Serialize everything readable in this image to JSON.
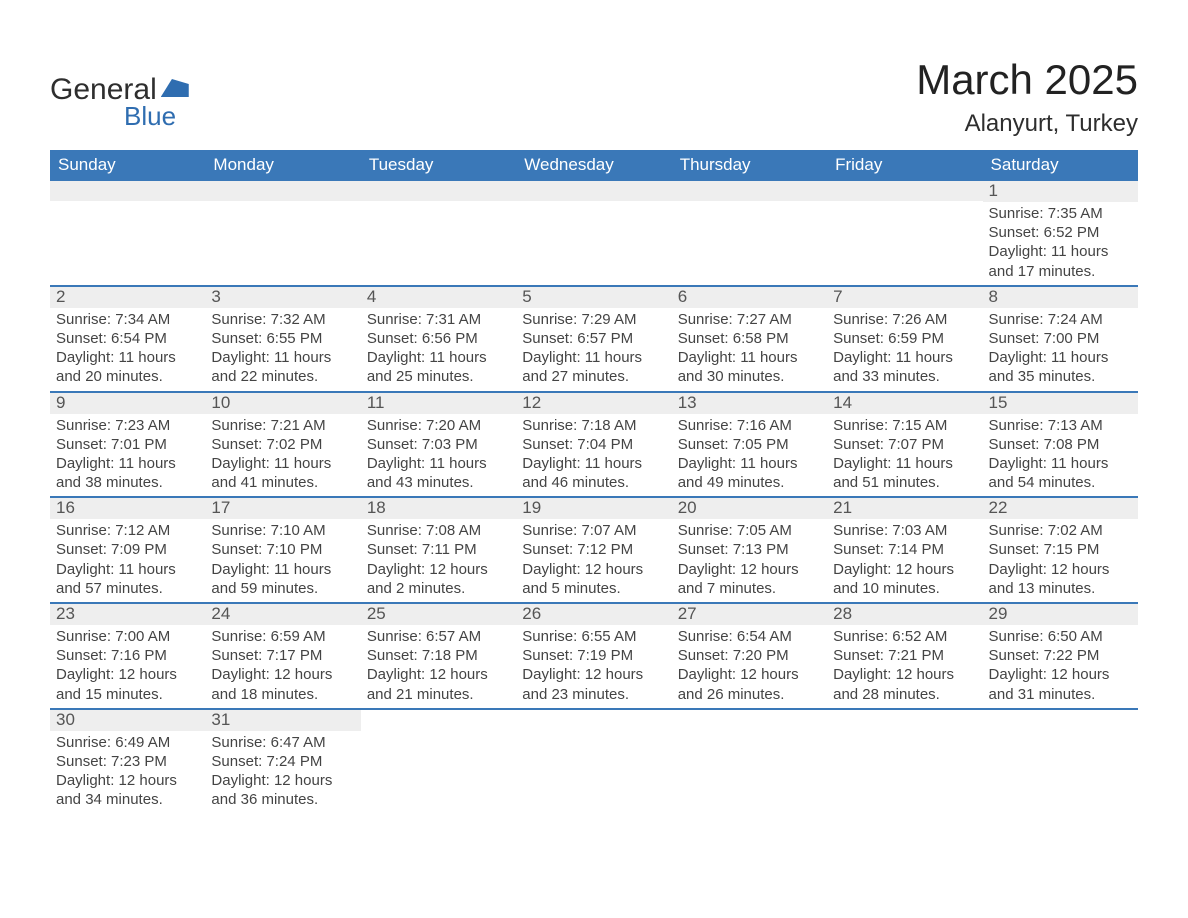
{
  "logo": {
    "main": "General",
    "sub": "Blue"
  },
  "title": "March 2025",
  "location": "Alanyurt, Turkey",
  "colors": {
    "header_bg": "#3a78b8",
    "header_text": "#ffffff",
    "row_separator": "#3a78b8",
    "daynum_bg": "#eeeeee",
    "text": "#444444",
    "logo_accent": "#2f6db0"
  },
  "dow": [
    "Sunday",
    "Monday",
    "Tuesday",
    "Wednesday",
    "Thursday",
    "Friday",
    "Saturday"
  ],
  "weeks": [
    [
      null,
      null,
      null,
      null,
      null,
      null,
      {
        "n": "1",
        "sr": "7:35 AM",
        "ss": "6:52 PM",
        "dl": "11 hours and 17 minutes."
      }
    ],
    [
      {
        "n": "2",
        "sr": "7:34 AM",
        "ss": "6:54 PM",
        "dl": "11 hours and 20 minutes."
      },
      {
        "n": "3",
        "sr": "7:32 AM",
        "ss": "6:55 PM",
        "dl": "11 hours and 22 minutes."
      },
      {
        "n": "4",
        "sr": "7:31 AM",
        "ss": "6:56 PM",
        "dl": "11 hours and 25 minutes."
      },
      {
        "n": "5",
        "sr": "7:29 AM",
        "ss": "6:57 PM",
        "dl": "11 hours and 27 minutes."
      },
      {
        "n": "6",
        "sr": "7:27 AM",
        "ss": "6:58 PM",
        "dl": "11 hours and 30 minutes."
      },
      {
        "n": "7",
        "sr": "7:26 AM",
        "ss": "6:59 PM",
        "dl": "11 hours and 33 minutes."
      },
      {
        "n": "8",
        "sr": "7:24 AM",
        "ss": "7:00 PM",
        "dl": "11 hours and 35 minutes."
      }
    ],
    [
      {
        "n": "9",
        "sr": "7:23 AM",
        "ss": "7:01 PM",
        "dl": "11 hours and 38 minutes."
      },
      {
        "n": "10",
        "sr": "7:21 AM",
        "ss": "7:02 PM",
        "dl": "11 hours and 41 minutes."
      },
      {
        "n": "11",
        "sr": "7:20 AM",
        "ss": "7:03 PM",
        "dl": "11 hours and 43 minutes."
      },
      {
        "n": "12",
        "sr": "7:18 AM",
        "ss": "7:04 PM",
        "dl": "11 hours and 46 minutes."
      },
      {
        "n": "13",
        "sr": "7:16 AM",
        "ss": "7:05 PM",
        "dl": "11 hours and 49 minutes."
      },
      {
        "n": "14",
        "sr": "7:15 AM",
        "ss": "7:07 PM",
        "dl": "11 hours and 51 minutes."
      },
      {
        "n": "15",
        "sr": "7:13 AM",
        "ss": "7:08 PM",
        "dl": "11 hours and 54 minutes."
      }
    ],
    [
      {
        "n": "16",
        "sr": "7:12 AM",
        "ss": "7:09 PM",
        "dl": "11 hours and 57 minutes."
      },
      {
        "n": "17",
        "sr": "7:10 AM",
        "ss": "7:10 PM",
        "dl": "11 hours and 59 minutes."
      },
      {
        "n": "18",
        "sr": "7:08 AM",
        "ss": "7:11 PM",
        "dl": "12 hours and 2 minutes."
      },
      {
        "n": "19",
        "sr": "7:07 AM",
        "ss": "7:12 PM",
        "dl": "12 hours and 5 minutes."
      },
      {
        "n": "20",
        "sr": "7:05 AM",
        "ss": "7:13 PM",
        "dl": "12 hours and 7 minutes."
      },
      {
        "n": "21",
        "sr": "7:03 AM",
        "ss": "7:14 PM",
        "dl": "12 hours and 10 minutes."
      },
      {
        "n": "22",
        "sr": "7:02 AM",
        "ss": "7:15 PM",
        "dl": "12 hours and 13 minutes."
      }
    ],
    [
      {
        "n": "23",
        "sr": "7:00 AM",
        "ss": "7:16 PM",
        "dl": "12 hours and 15 minutes."
      },
      {
        "n": "24",
        "sr": "6:59 AM",
        "ss": "7:17 PM",
        "dl": "12 hours and 18 minutes."
      },
      {
        "n": "25",
        "sr": "6:57 AM",
        "ss": "7:18 PM",
        "dl": "12 hours and 21 minutes."
      },
      {
        "n": "26",
        "sr": "6:55 AM",
        "ss": "7:19 PM",
        "dl": "12 hours and 23 minutes."
      },
      {
        "n": "27",
        "sr": "6:54 AM",
        "ss": "7:20 PM",
        "dl": "12 hours and 26 minutes."
      },
      {
        "n": "28",
        "sr": "6:52 AM",
        "ss": "7:21 PM",
        "dl": "12 hours and 28 minutes."
      },
      {
        "n": "29",
        "sr": "6:50 AM",
        "ss": "7:22 PM",
        "dl": "12 hours and 31 minutes."
      }
    ],
    [
      {
        "n": "30",
        "sr": "6:49 AM",
        "ss": "7:23 PM",
        "dl": "12 hours and 34 minutes."
      },
      {
        "n": "31",
        "sr": "6:47 AM",
        "ss": "7:24 PM",
        "dl": "12 hours and 36 minutes."
      },
      null,
      null,
      null,
      null,
      null
    ]
  ],
  "labels": {
    "sunrise": "Sunrise: ",
    "sunset": "Sunset: ",
    "daylight": "Daylight: "
  }
}
